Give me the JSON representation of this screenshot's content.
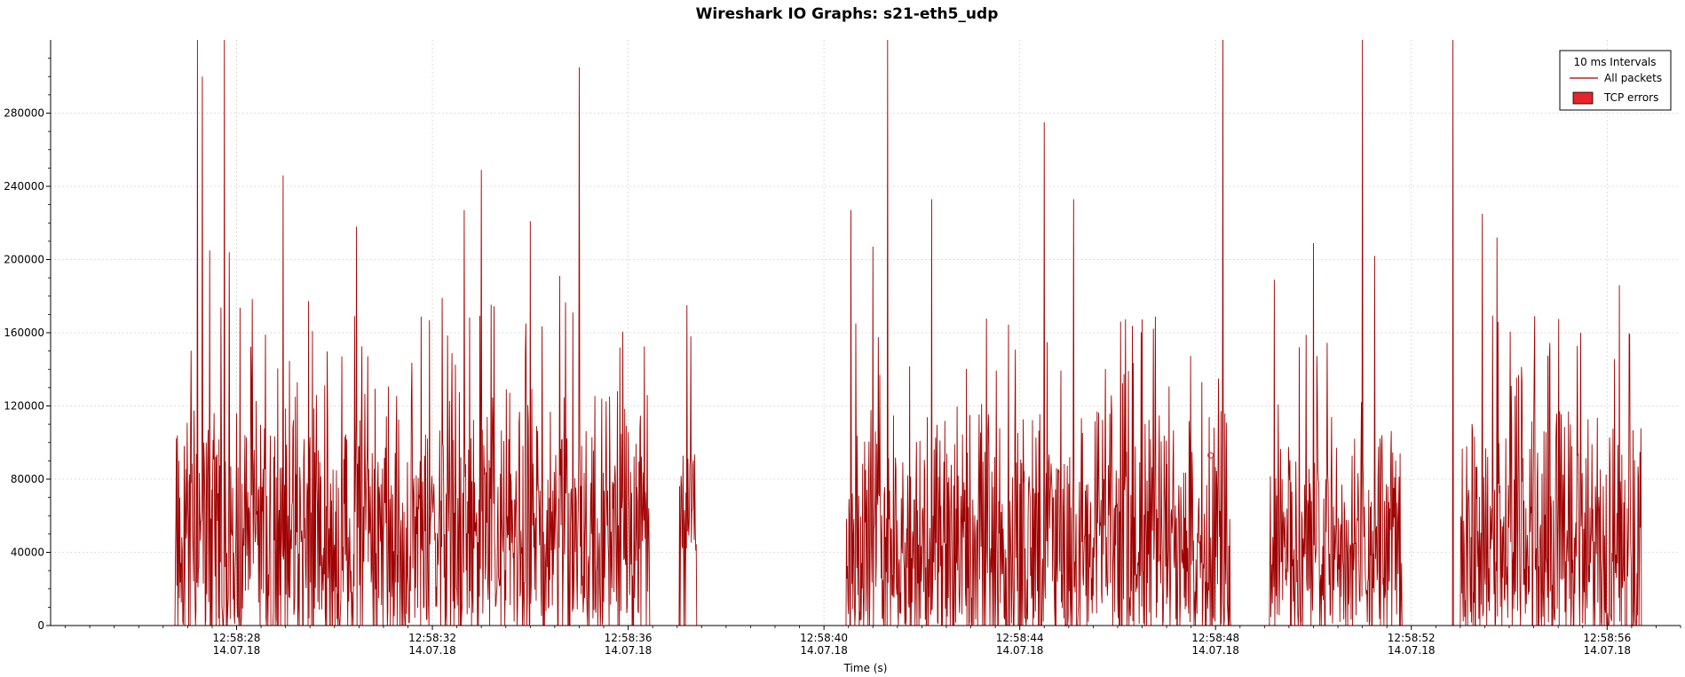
{
  "chart_data": {
    "type": "line",
    "title": "Wireshark IO Graphs: s21-eth5_udp",
    "xlabel": "Time (s)",
    "ylabel": "",
    "xlim_seconds": [
      24.2,
      57.5
    ],
    "ylim": [
      0,
      320000
    ],
    "y_ticks": [
      0,
      40000,
      80000,
      120000,
      160000,
      200000,
      240000,
      280000
    ],
    "x_ticks": [
      {
        "t": 28,
        "time": "12:58:28",
        "date": "14.07.18"
      },
      {
        "t": 32,
        "time": "12:58:32",
        "date": "14.07.18"
      },
      {
        "t": 36,
        "time": "12:58:36",
        "date": "14.07.18"
      },
      {
        "t": 40,
        "time": "12:58:40",
        "date": "14.07.18"
      },
      {
        "t": 44,
        "time": "12:58:44",
        "date": "14.07.18"
      },
      {
        "t": 48,
        "time": "12:58:48",
        "date": "14.07.18"
      },
      {
        "t": 52,
        "time": "12:58:52",
        "date": "14.07.18"
      },
      {
        "t": 56,
        "time": "12:58:56",
        "date": "14.07.18"
      }
    ],
    "grid": true,
    "legend": {
      "placement": "top-right",
      "title": "10 ms Intervals",
      "entries": [
        "All packets",
        "TCP errors"
      ]
    },
    "series": [
      {
        "name": "All packets",
        "color": "#a00000",
        "interval": "10 ms",
        "bursts": [
          {
            "start": 26.75,
            "end": 36.45,
            "typical": [
              0,
              140000
            ]
          },
          {
            "start": 37.05,
            "end": 37.4,
            "typical": [
              40000,
              120000
            ]
          },
          {
            "start": 40.45,
            "end": 48.3,
            "typical": [
              0,
              130000
            ]
          },
          {
            "start": 49.1,
            "end": 51.8,
            "typical": [
              0,
              120000
            ]
          },
          {
            "start": 53.0,
            "end": 56.7,
            "typical": [
              0,
              130000
            ]
          }
        ],
        "peaks": [
          {
            "t": 27.2,
            "y": 320000
          },
          {
            "t": 27.3,
            "y": 300000
          },
          {
            "t": 27.45,
            "y": 205000
          },
          {
            "t": 27.75,
            "y": 320000
          },
          {
            "t": 27.85,
            "y": 204000
          },
          {
            "t": 28.95,
            "y": 246000
          },
          {
            "t": 30.45,
            "y": 218000
          },
          {
            "t": 32.65,
            "y": 227000
          },
          {
            "t": 33.0,
            "y": 249000
          },
          {
            "t": 34.0,
            "y": 221000
          },
          {
            "t": 35.0,
            "y": 305000
          },
          {
            "t": 34.6,
            "y": 191000
          },
          {
            "t": 37.2,
            "y": 175000
          },
          {
            "t": 40.55,
            "y": 227000
          },
          {
            "t": 41.0,
            "y": 207000
          },
          {
            "t": 41.3,
            "y": 320000
          },
          {
            "t": 42.2,
            "y": 233000
          },
          {
            "t": 44.5,
            "y": 275000
          },
          {
            "t": 45.1,
            "y": 233000
          },
          {
            "t": 48.15,
            "y": 320000
          },
          {
            "t": 49.2,
            "y": 189000
          },
          {
            "t": 50.0,
            "y": 209000
          },
          {
            "t": 51.0,
            "y": 320000
          },
          {
            "t": 51.25,
            "y": 202000
          },
          {
            "t": 52.85,
            "y": 320000
          },
          {
            "t": 53.45,
            "y": 225000
          },
          {
            "t": 53.75,
            "y": 212000
          },
          {
            "t": 56.25,
            "y": 186000
          }
        ]
      },
      {
        "name": "TCP errors",
        "color": "#e8232b",
        "points": [
          {
            "t": 47.9,
            "y": 93000
          }
        ]
      }
    ]
  }
}
